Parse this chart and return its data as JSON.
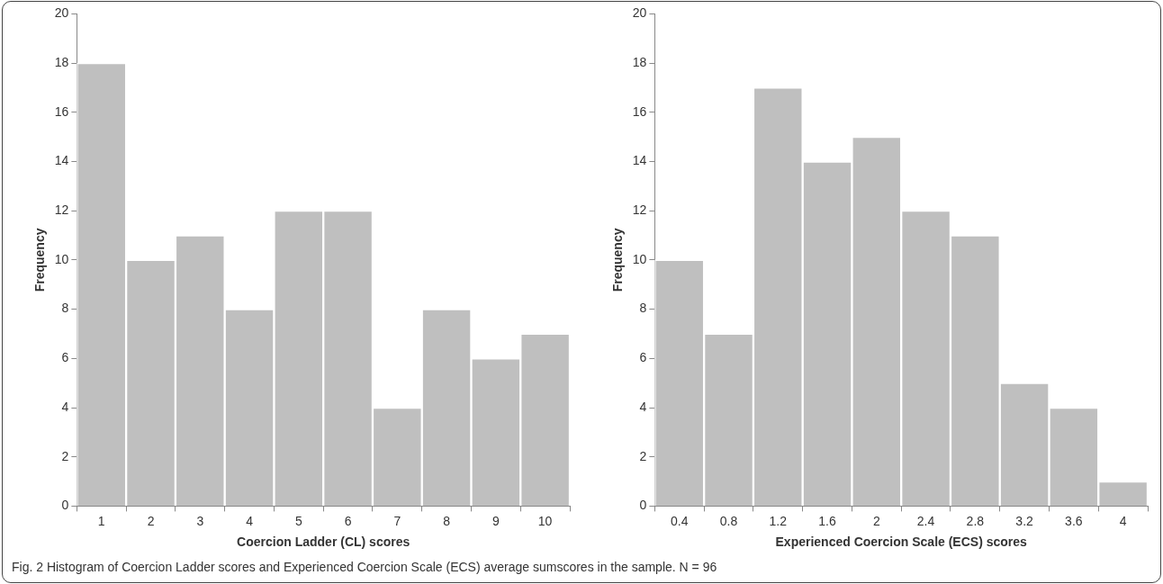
{
  "chart_data": [
    {
      "type": "bar",
      "categories": [
        "1",
        "2",
        "3",
        "4",
        "5",
        "6",
        "7",
        "8",
        "9",
        "10"
      ],
      "values": [
        18,
        10,
        11,
        8,
        12,
        12,
        4,
        8,
        6,
        7
      ],
      "color": "#bfbfbf",
      "xlabel": "Coercion Ladder (CL) scores",
      "ylabel": "Frequency",
      "ylim": [
        0,
        20
      ],
      "yticks": [
        0,
        2,
        4,
        6,
        8,
        10,
        12,
        14,
        16,
        18,
        20
      ],
      "annotations": [
        "Fig. 2 Histogram of Coercion Ladder scores and Experienced Coercion Scale (ECS) average sumscores in the sample. N = 96"
      ]
    },
    {
      "type": "bar",
      "categories": [
        "0.4",
        "0.8",
        "1.2",
        "1.6",
        "2",
        "2.4",
        "2.8",
        "3.2",
        "3.6",
        "4"
      ],
      "values": [
        10,
        7,
        17,
        14,
        15,
        12,
        11,
        5,
        4,
        1
      ],
      "color": "#bfbfbf",
      "xlabel": "Experienced Coercion Scale (ECS) scores",
      "ylabel": "Frequency",
      "ylim": [
        0,
        20
      ],
      "yticks": [
        0,
        2,
        4,
        6,
        8,
        10,
        12,
        14,
        16,
        18,
        20
      ]
    }
  ]
}
